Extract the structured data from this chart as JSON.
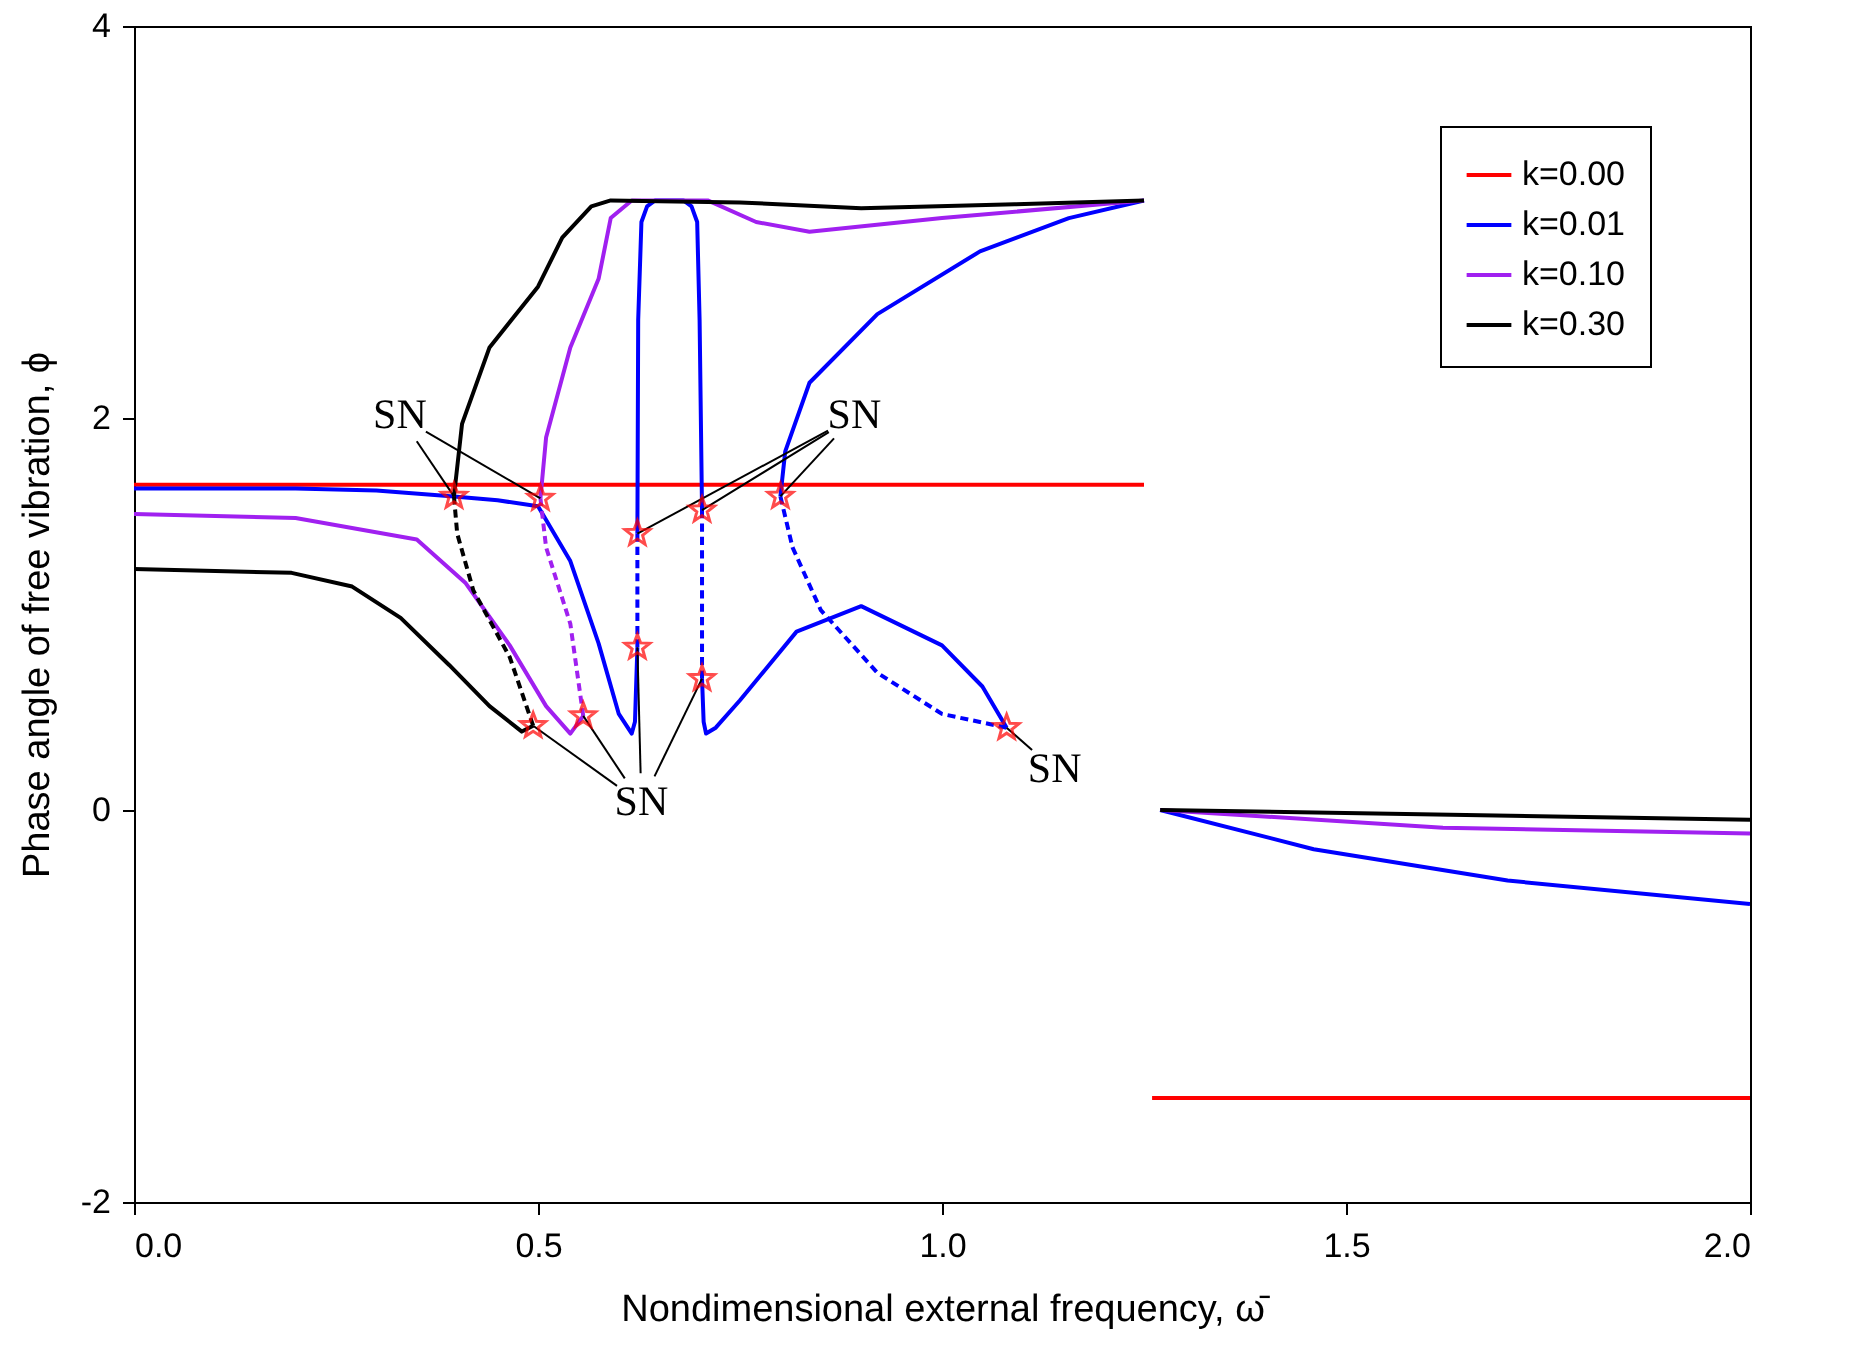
{
  "chart_data": {
    "type": "line",
    "xlabel": "Nondimensional external frequency, ω̄",
    "ylabel": "Phase angle of free vibration, ϕ",
    "xlim": [
      0,
      2
    ],
    "ylim": [
      -2,
      4
    ],
    "xticks": [
      {
        "value": 0,
        "label": "0.0"
      },
      {
        "value": 0.5,
        "label": "0.5"
      },
      {
        "value": 1,
        "label": "1.0"
      },
      {
        "value": 1.5,
        "label": "1.5"
      },
      {
        "value": 2,
        "label": "2.0"
      }
    ],
    "yticks": [
      -2,
      0,
      2,
      4
    ],
    "grid": false,
    "legend": "top right",
    "series": [
      {
        "name": "k=0.00",
        "color": "#ff0000",
        "line_style": "solid",
        "x": [
          0,
          1.25
        ],
        "values": [
          1.66,
          1.66
        ]
      },
      {
        "color": "#ff0000",
        "line_style": "solid",
        "x": [
          1.26,
          2.0
        ],
        "values": [
          -1.47,
          -1.47
        ]
      },
      {
        "name": "k=0.01",
        "color": "#0000ff",
        "line_style": "solid",
        "x": [
          0,
          0.2,
          0.3,
          0.396,
          0.45,
          0.5,
          0.54,
          0.575,
          0.6,
          0.616,
          0.62,
          0.623
        ],
        "values": [
          1.64,
          1.64,
          1.63,
          1.6,
          1.58,
          1.55,
          1.27,
          0.85,
          0.49,
          0.39,
          0.45,
          0.83
        ]
      },
      {
        "color": "#0000ff",
        "line_style": "dashed",
        "x": [
          0.623,
          0.623
        ],
        "values": [
          0.83,
          1.41
        ]
      },
      {
        "color": "#0000ff",
        "line_style": "solid",
        "x": [
          0.623,
          0.624,
          0.628,
          0.635,
          0.645,
          0.68,
          0.69,
          0.697,
          0.7,
          0.703
        ],
        "values": [
          1.41,
          2.5,
          3.0,
          3.08,
          3.11,
          3.11,
          3.08,
          3.0,
          2.5,
          1.53
        ]
      },
      {
        "color": "#0000ff",
        "line_style": "dashed",
        "x": [
          0.703,
          0.703
        ],
        "values": [
          1.53,
          0.67
        ]
      },
      {
        "color": "#0000ff",
        "line_style": "solid",
        "x": [
          0.703,
          0.705,
          0.708,
          0.72,
          0.75,
          0.82,
          0.9,
          1.0,
          1.05,
          1.08
        ],
        "values": [
          0.67,
          0.45,
          0.39,
          0.42,
          0.56,
          0.91,
          1.04,
          0.84,
          0.63,
          0.42
        ]
      },
      {
        "color": "#0000ff",
        "line_style": "dashed",
        "x": [
          1.08,
          1.0,
          0.92,
          0.85,
          0.815,
          0.8
        ],
        "values": [
          0.42,
          0.49,
          0.7,
          1.02,
          1.34,
          1.6
        ]
      },
      {
        "color": "#0000ff",
        "line_style": "solid",
        "x": [
          0.8,
          0.806,
          0.836,
          0.92,
          1.047,
          1.157,
          1.25
        ],
        "values": [
          1.6,
          1.83,
          2.18,
          2.53,
          2.85,
          3.02,
          3.11
        ]
      },
      {
        "color": "#0000ff",
        "line_style": "solid",
        "x": [
          1.27,
          1.46,
          1.7,
          2.0
        ],
        "values": [
          0,
          -0.2,
          -0.36,
          -0.48
        ]
      },
      {
        "name": "k=0.10",
        "color": "#a020f0",
        "line_style": "solid",
        "x": [
          0,
          0.2,
          0.35,
          0.41,
          0.465,
          0.51,
          0.54,
          0.556
        ],
        "values": [
          1.51,
          1.49,
          1.38,
          1.16,
          0.84,
          0.53,
          0.39,
          0.48
        ]
      },
      {
        "color": "#a020f0",
        "line_style": "dashed",
        "x": [
          0.556,
          0.54,
          0.51,
          0.503
        ],
        "values": [
          0.48,
          0.95,
          1.34,
          1.59
        ]
      },
      {
        "color": "#a020f0",
        "line_style": "solid",
        "x": [
          0.503,
          0.51,
          0.54,
          0.575,
          0.59,
          0.616,
          0.71,
          0.77,
          0.836,
          1.0,
          1.25
        ],
        "values": [
          1.59,
          1.9,
          2.36,
          2.71,
          3.02,
          3.11,
          3.11,
          3.0,
          2.95,
          3.02,
          3.11
        ]
      },
      {
        "color": "#a020f0",
        "line_style": "solid",
        "x": [
          1.27,
          1.62,
          2.0
        ],
        "values": [
          0,
          -0.09,
          -0.12
        ]
      },
      {
        "name": "k=0.30",
        "color": "#000000",
        "line_style": "solid",
        "x": [
          0,
          0.195,
          0.27,
          0.33,
          0.39,
          0.44,
          0.48,
          0.494
        ],
        "values": [
          1.23,
          1.21,
          1.14,
          0.98,
          0.74,
          0.53,
          0.4,
          0.43
        ]
      },
      {
        "color": "#000000",
        "line_style": "dashed",
        "x": [
          0.494,
          0.465,
          0.42,
          0.4,
          0.396
        ],
        "values": [
          0.43,
          0.78,
          1.12,
          1.41,
          1.6
        ]
      },
      {
        "color": "#000000",
        "line_style": "solid",
        "x": [
          0.396,
          0.406,
          0.44,
          0.5,
          0.53,
          0.566,
          0.59,
          0.75,
          0.9,
          1.09,
          1.25
        ],
        "values": [
          1.6,
          1.97,
          2.36,
          2.67,
          2.92,
          3.08,
          3.11,
          3.1,
          3.07,
          3.09,
          3.11
        ]
      },
      {
        "color": "#000000",
        "line_style": "solid",
        "x": [
          1.27,
          2.0
        ],
        "values": [
          0,
          -0.05
        ]
      },
      {
        "type": "scatter",
        "marker": "star",
        "color": "#ff0000",
        "x": [
          0.396,
          0.494,
          0.503,
          0.556,
          0.623,
          0.623,
          0.703,
          0.703,
          0.8,
          1.08
        ],
        "values": [
          1.6,
          0.43,
          1.59,
          0.48,
          1.41,
          0.83,
          1.53,
          0.67,
          1.6,
          0.42
        ]
      }
    ],
    "annotations": [
      {
        "text": "SN",
        "x": 0.396,
        "y": 1.6
      },
      {
        "text": "SN",
        "x": 0.8,
        "y": 1.6
      },
      {
        "text": "SN",
        "x": 0.623,
        "y": 0.83
      },
      {
        "text": "SN",
        "x": 1.08,
        "y": 0.42
      }
    ]
  }
}
